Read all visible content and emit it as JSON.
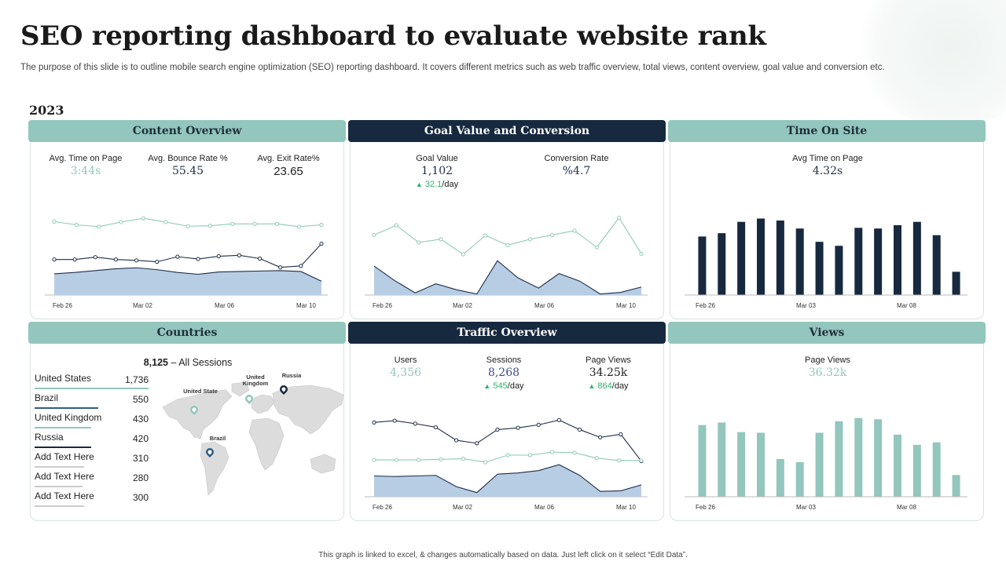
{
  "header": {
    "title": "SEO reporting dashboard to evaluate website rank",
    "subtitle": "The purpose of this slide is to outline mobile search engine optimization (SEO) reporting dashboard. It covers different metrics such as web traffic overview, total views, content overview, goal value and conversion etc.",
    "year": "2023"
  },
  "footer": "This graph is linked to excel, & changes automatically based on data. Just left click on it select “Edit Data”.",
  "colors": {
    "teal": "#93c6bd",
    "navy": "#17293f",
    "area": "#b7cde3",
    "line_dark": "#1f2d4a",
    "line_light": "#8fcab9",
    "up": "#2bb36a"
  },
  "content_overview": {
    "title": "Content Overview",
    "metrics": [
      {
        "label": "Avg. Time on Page",
        "value": "3:44s"
      },
      {
        "label": "Avg. Bounce Rate %",
        "value": "55.45"
      },
      {
        "label": "Avg. Exit Rate%",
        "value": "23.65"
      }
    ]
  },
  "goal_value": {
    "title": "Goal Value and Conversion",
    "metrics": [
      {
        "label": "Goal Value",
        "value": "1,102",
        "change": "32.1",
        "unit": "/day",
        "icon": "up-triangle-icon"
      },
      {
        "label": "Conversion Rate",
        "value": "%4.7"
      }
    ]
  },
  "time_on_site": {
    "title": "Time On Site",
    "metric": {
      "label": "Avg Time on Page",
      "value": "4.32s"
    }
  },
  "countries": {
    "title": "Countries",
    "sessions_value": "8,125",
    "sessions_label": "All Sessions",
    "rows": [
      {
        "name": "United States",
        "value": "1,736",
        "color": "#93c6bd"
      },
      {
        "name": "Brazil",
        "value": "550",
        "color": "#2f5d86"
      },
      {
        "name": "United Kingdom",
        "value": "430",
        "color": "#93c6bd"
      },
      {
        "name": "Russia",
        "value": "420",
        "color": "#17293f"
      },
      {
        "name": "Add Text Here",
        "value": "310",
        "color": "#cccccc"
      },
      {
        "name": "Add Text Here",
        "value": "280",
        "color": "#cccccc"
      },
      {
        "name": "Add Text Here",
        "value": "300",
        "color": "#cccccc"
      }
    ],
    "map_labels": [
      "United State",
      "United Kingdom",
      "Russia",
      "Brazil"
    ]
  },
  "traffic_overview": {
    "title": "Traffic Overview",
    "metrics": [
      {
        "label": "Users",
        "value": "4,356"
      },
      {
        "label": "Sessions",
        "value": "8,268",
        "change": "545",
        "unit": "/day"
      },
      {
        "label": "Page Views",
        "value": "34.25k",
        "change": "864",
        "unit": "/day"
      }
    ]
  },
  "views": {
    "title": "Views",
    "metric": {
      "label": "Page Views",
      "value": "36.32k"
    }
  },
  "chart_data": [
    {
      "id": "content",
      "type": "line",
      "x_ticks": [
        "Feb 26",
        "Mar 02",
        "Mar 06",
        "Mar 10"
      ],
      "series": [
        {
          "style": "light-line",
          "values": [
            15.9,
            15.2,
            14.8,
            15.8,
            16.6,
            15.8,
            14.9,
            15.0,
            15.4,
            15.4,
            15.4,
            14.8,
            15.2
          ]
        },
        {
          "style": "dark-line",
          "values": [
            7.7,
            7.7,
            8.2,
            7.7,
            7.5,
            7.2,
            8.3,
            7.8,
            8.4,
            8.6,
            7.9,
            6.0,
            6.3,
            11.1
          ]
        },
        {
          "style": "area",
          "values": [
            4.6,
            4.9,
            5.3,
            5.7,
            5.9,
            5.5,
            4.9,
            4.5,
            5.0,
            5.1,
            5.2,
            5.3,
            5.1,
            3.0
          ]
        }
      ]
    },
    {
      "id": "goal",
      "type": "line",
      "x_ticks": [
        "Feb 26",
        "Mar 02",
        "Mar 06",
        "Mar 10"
      ],
      "series": [
        {
          "style": "light-line",
          "values": [
            10.2,
            12.0,
            8.8,
            9.4,
            6.6,
            10.1,
            8.3,
            9.4,
            10.2,
            11.0,
            7.9,
            13.4,
            6.7
          ]
        },
        {
          "style": "area",
          "values": [
            4.4,
            1.7,
            -0.6,
            1.1,
            0.0,
            -0.8,
            5.4,
            2.2,
            0.3,
            3.0,
            1.6,
            -0.8,
            -0.5,
            0.5
          ]
        }
      ]
    },
    {
      "id": "time_on_site",
      "type": "bar",
      "x_ticks": [
        "Feb 26",
        "Mar 03",
        "Mar 08"
      ],
      "values": [
        88,
        93,
        110,
        115,
        112,
        100,
        80,
        74,
        101,
        100,
        105,
        110,
        90,
        35
      ]
    },
    {
      "id": "traffic",
      "type": "line",
      "x_ticks": [
        "Feb 26",
        "Mar 02",
        "Mar 06",
        "Mar 10"
      ],
      "series": [
        {
          "style": "dark-line",
          "values": [
            10.5,
            10.8,
            10.3,
            9.7,
            7.5,
            7.0,
            9.3,
            9.6,
            10.1,
            10.9,
            9.3,
            8.0,
            8.5,
            4.0
          ]
        },
        {
          "style": "light-line",
          "values": [
            4.2,
            4.2,
            4.2,
            4.3,
            4.4,
            3.8,
            5.0,
            5.0,
            5.5,
            5.4,
            4.5,
            4.1,
            4.1
          ]
        },
        {
          "style": "area",
          "values": [
            1.5,
            1.4,
            1.5,
            1.6,
            -0.3,
            -1.3,
            1.8,
            2.0,
            2.4,
            3.4,
            1.6,
            -1.1,
            -1.0,
            0.0
          ]
        }
      ]
    },
    {
      "id": "views",
      "type": "bar",
      "x_ticks": [
        "Feb 26",
        "Mar 03",
        "Mar 08"
      ],
      "values": [
        112,
        116,
        101,
        100,
        59,
        54,
        100,
        118,
        123,
        121,
        97,
        81,
        85,
        34
      ]
    }
  ]
}
